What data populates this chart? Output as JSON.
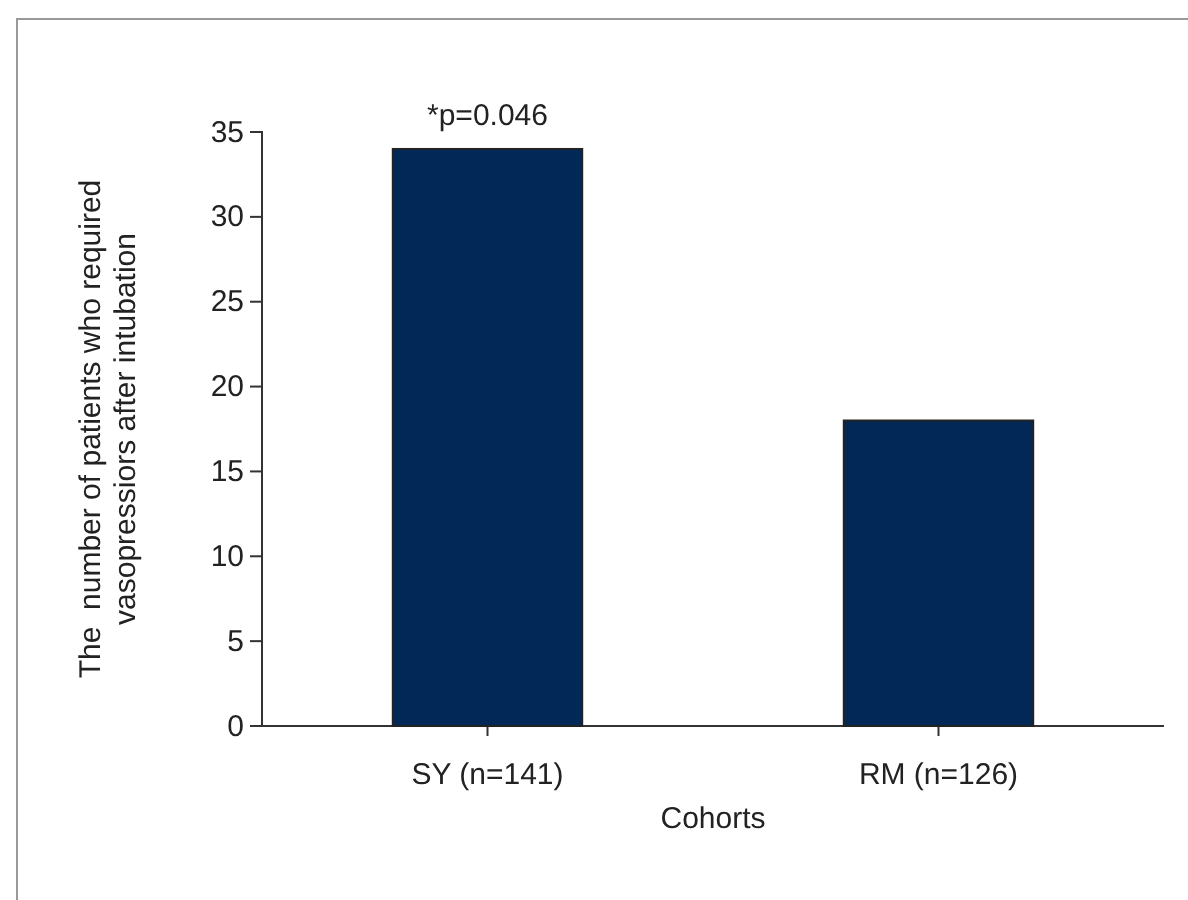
{
  "chart_data": {
    "type": "bar",
    "xlabel": "Cohorts",
    "ylabel": "The  number of patients who required\nvasopressiors after intubation",
    "categories": [
      "SY (n=141)",
      "RM (n=126)"
    ],
    "values": [
      34,
      18
    ],
    "color": "#022857",
    "ylim": [
      0,
      35
    ],
    "yticks": [
      0,
      5,
      10,
      15,
      20,
      25,
      30,
      35
    ],
    "annotations": [
      {
        "text": "*p=0.046",
        "x": "SY (n=141)",
        "y": 34
      }
    ]
  }
}
